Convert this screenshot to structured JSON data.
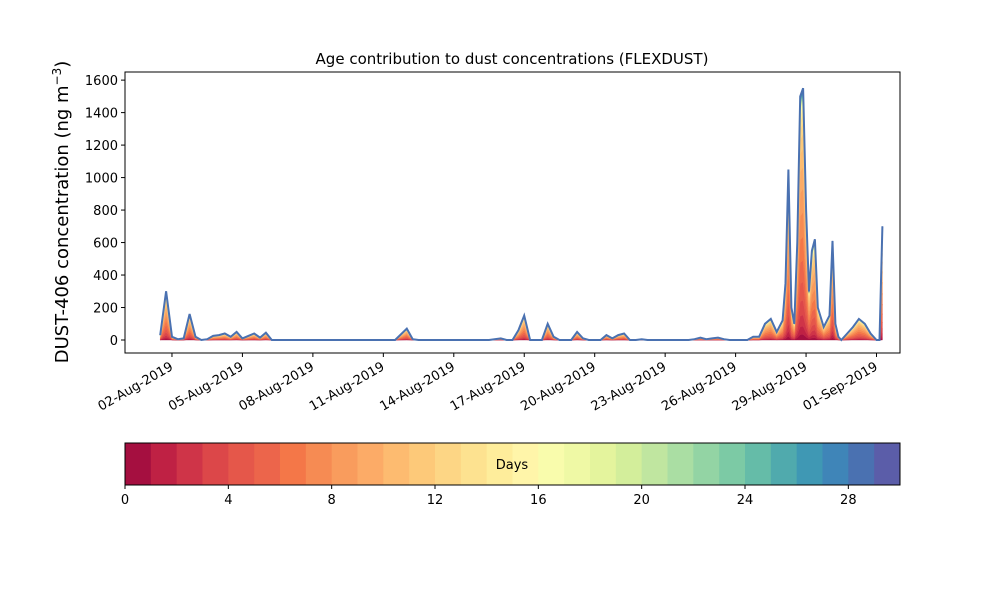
{
  "chart_data": {
    "type": "area",
    "stacked": true,
    "title": "Age contribution to dust concentrations (FLEXDUST)",
    "xlabel": "",
    "ylabel": "DUST-406 concentration (ng m",
    "ylabel_sup": "−3",
    "ylabel_close": ")",
    "ylim": [
      -80,
      1650
    ],
    "yticks": [
      0,
      200,
      400,
      600,
      800,
      1000,
      1200,
      1400,
      1600
    ],
    "xlim": [
      "2019-07-31T00:00",
      "2019-09-02T00:00"
    ],
    "xticks": [
      "02-Aug-2019",
      "05-Aug-2019",
      "08-Aug-2019",
      "11-Aug-2019",
      "14-Aug-2019",
      "17-Aug-2019",
      "20-Aug-2019",
      "23-Aug-2019",
      "26-Aug-2019",
      "29-Aug-2019",
      "01-Sep-2019"
    ],
    "xtick_dates": [
      "2019-08-02",
      "2019-08-05",
      "2019-08-08",
      "2019-08-11",
      "2019-08-14",
      "2019-08-17",
      "2019-08-20",
      "2019-08-23",
      "2019-08-26",
      "2019-08-29",
      "2019-09-01"
    ],
    "grid": false,
    "age_bins_days": 30,
    "total": {
      "x": [
        "2019-08-01T12:00",
        "2019-08-01T18:00",
        "2019-08-02T00:00",
        "2019-08-02T06:00",
        "2019-08-02T12:00",
        "2019-08-02T18:00",
        "2019-08-03T00:00",
        "2019-08-03T06:00",
        "2019-08-03T12:00",
        "2019-08-03T18:00",
        "2019-08-04T00:00",
        "2019-08-04T06:00",
        "2019-08-04T12:00",
        "2019-08-04T18:00",
        "2019-08-05T00:00",
        "2019-08-05T06:00",
        "2019-08-05T12:00",
        "2019-08-05T18:00",
        "2019-08-06T00:00",
        "2019-08-06T06:00",
        "2019-08-06T12:00",
        "2019-08-06T18:00",
        "2019-08-07T00:00",
        "2019-08-07T06:00",
        "2019-08-07T12:00",
        "2019-08-07T18:00",
        "2019-08-08T00:00",
        "2019-08-08T12:00",
        "2019-08-09T00:00",
        "2019-08-09T12:00",
        "2019-08-10T00:00",
        "2019-08-10T12:00",
        "2019-08-11T00:00",
        "2019-08-11T12:00",
        "2019-08-12T00:00",
        "2019-08-12T06:00",
        "2019-08-12T12:00",
        "2019-08-12T18:00",
        "2019-08-13T00:00",
        "2019-08-13T12:00",
        "2019-08-14T00:00",
        "2019-08-14T12:00",
        "2019-08-15T00:00",
        "2019-08-15T12:00",
        "2019-08-16T00:00",
        "2019-08-16T06:00",
        "2019-08-16T12:00",
        "2019-08-16T18:00",
        "2019-08-17T00:00",
        "2019-08-17T06:00",
        "2019-08-17T12:00",
        "2019-08-17T18:00",
        "2019-08-18T00:00",
        "2019-08-18T06:00",
        "2019-08-18T12:00",
        "2019-08-18T18:00",
        "2019-08-19T00:00",
        "2019-08-19T06:00",
        "2019-08-19T12:00",
        "2019-08-19T18:00",
        "2019-08-20T00:00",
        "2019-08-20T06:00",
        "2019-08-20T12:00",
        "2019-08-20T18:00",
        "2019-08-21T00:00",
        "2019-08-21T06:00",
        "2019-08-21T12:00",
        "2019-08-21T18:00",
        "2019-08-22T00:00",
        "2019-08-22T06:00",
        "2019-08-22T12:00",
        "2019-08-22T18:00",
        "2019-08-23T00:00",
        "2019-08-23T12:00",
        "2019-08-24T00:00",
        "2019-08-24T06:00",
        "2019-08-24T12:00",
        "2019-08-24T18:00",
        "2019-08-25T00:00",
        "2019-08-25T06:00",
        "2019-08-25T12:00",
        "2019-08-25T18:00",
        "2019-08-26T00:00",
        "2019-08-26T06:00",
        "2019-08-26T12:00",
        "2019-08-26T18:00",
        "2019-08-27T00:00",
        "2019-08-27T06:00",
        "2019-08-27T12:00",
        "2019-08-27T18:00",
        "2019-08-28T00:00",
        "2019-08-28T03:00",
        "2019-08-28T06:00",
        "2019-08-28T09:00",
        "2019-08-28T12:00",
        "2019-08-28T15:00",
        "2019-08-28T18:00",
        "2019-08-28T21:00",
        "2019-08-29T00:00",
        "2019-08-29T03:00",
        "2019-08-29T06:00",
        "2019-08-29T09:00",
        "2019-08-29T12:00",
        "2019-08-29T18:00",
        "2019-08-30T00:00",
        "2019-08-30T03:00",
        "2019-08-30T06:00",
        "2019-08-30T09:00",
        "2019-08-30T12:00",
        "2019-08-30T18:00",
        "2019-08-31T00:00",
        "2019-08-31T06:00",
        "2019-08-31T12:00",
        "2019-08-31T18:00",
        "2019-09-01T00:00",
        "2019-09-01T03:00",
        "2019-09-01T06:00"
      ],
      "y": [
        30,
        300,
        20,
        5,
        10,
        160,
        20,
        0,
        5,
        25,
        30,
        40,
        20,
        50,
        10,
        25,
        40,
        15,
        45,
        0,
        0,
        0,
        0,
        0,
        0,
        0,
        0,
        0,
        0,
        0,
        0,
        0,
        0,
        0,
        70,
        5,
        0,
        0,
        0,
        0,
        0,
        0,
        0,
        0,
        10,
        0,
        0,
        60,
        150,
        0,
        0,
        0,
        100,
        20,
        0,
        0,
        0,
        50,
        10,
        0,
        0,
        0,
        30,
        10,
        30,
        40,
        0,
        0,
        5,
        0,
        0,
        0,
        0,
        0,
        0,
        5,
        15,
        5,
        10,
        15,
        5,
        0,
        0,
        0,
        0,
        20,
        20,
        100,
        130,
        50,
        120,
        350,
        1050,
        200,
        100,
        600,
        1500,
        1550,
        800,
        300,
        550,
        620,
        200,
        80,
        150,
        610,
        100,
        20,
        0,
        40,
        80,
        130,
        100,
        40,
        0,
        0,
        700
      ]
    },
    "colorbar": {
      "label": "Days",
      "min": 0,
      "max": 30,
      "bins": 30,
      "ticks": [
        0,
        4,
        8,
        12,
        16,
        20,
        24,
        28
      ],
      "colors": [
        "#a50f40",
        "#bf2144",
        "#cf3448",
        "#dc4749",
        "#e5574a",
        "#ec654b",
        "#f47748",
        "#f68b53",
        "#f99c5d",
        "#fcab67",
        "#fdbb70",
        "#fdc979",
        "#fdd685",
        "#fde290",
        "#feed9b",
        "#fff5a9",
        "#f9fcac",
        "#eff9a5",
        "#e4f49d",
        "#d3ee9b",
        "#c0e6a0",
        "#aadea3",
        "#93d4a4",
        "#7ccaa5",
        "#65bca8",
        "#50aaad",
        "#3f98b4",
        "#3f85b8",
        "#4a71b1",
        "#5b5da9"
      ]
    }
  }
}
